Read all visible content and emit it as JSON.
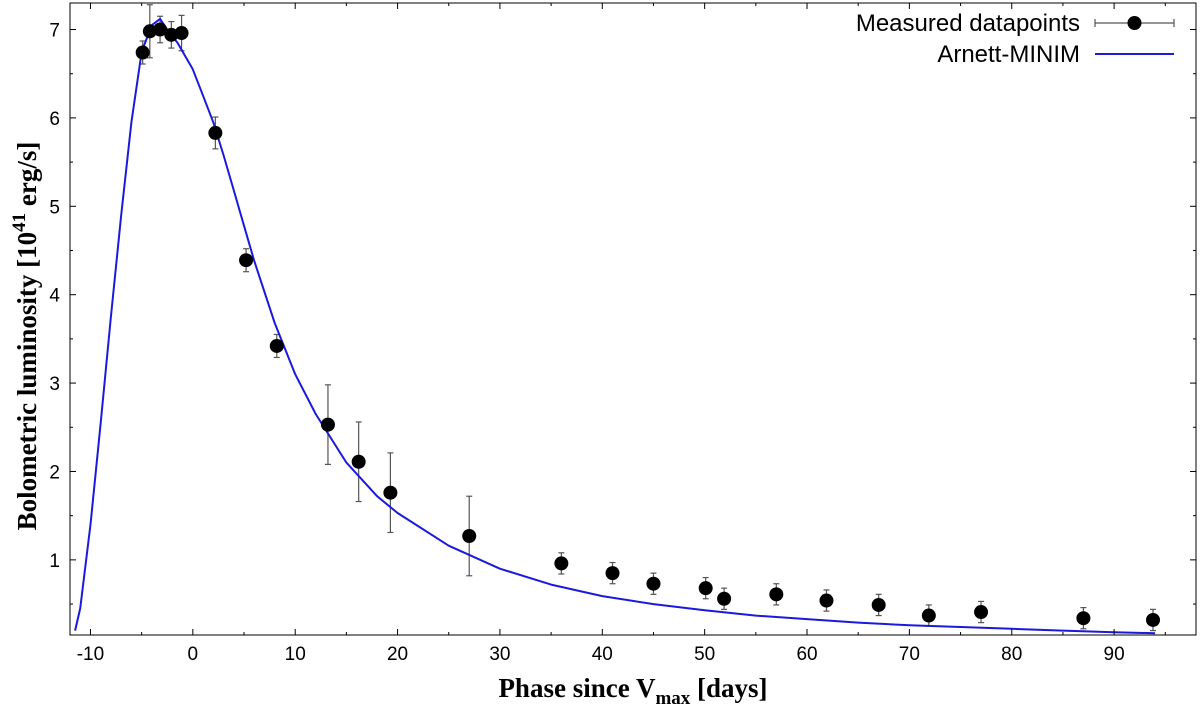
{
  "chart_data": {
    "type": "scatter",
    "title": "",
    "xlabel": {
      "main": "Phase since V",
      "sub": "max",
      "unit": " [days]"
    },
    "ylabel": {
      "main": "Bolometric luminosity [10",
      "sup": "41",
      "unit": " erg/s]"
    },
    "xlim": [
      -12,
      98
    ],
    "ylim": [
      0.15,
      7.3
    ],
    "xticks": [
      -10,
      0,
      10,
      20,
      30,
      40,
      50,
      60,
      70,
      80,
      90
    ],
    "yticks": [
      1,
      2,
      3,
      4,
      5,
      6,
      7
    ],
    "grid": false,
    "legend_position": "top-right",
    "series": [
      {
        "name": "Measured datapoints",
        "kind": "points-with-errorbars",
        "color": "#000000",
        "errorbar_color": "#555555",
        "x": [
          -4.9,
          -4.2,
          -3.2,
          -2.1,
          -1.1,
          2.2,
          5.2,
          8.2,
          13.2,
          16.2,
          19.3,
          27.0,
          36.0,
          41.0,
          45.0,
          50.1,
          51.9,
          57.0,
          61.9,
          67.0,
          71.9,
          77.0,
          87.0,
          93.8
        ],
        "y": [
          6.74,
          6.98,
          7.0,
          6.94,
          6.96,
          5.83,
          4.39,
          3.42,
          2.53,
          2.11,
          1.76,
          1.27,
          0.96,
          0.85,
          0.73,
          0.68,
          0.56,
          0.61,
          0.54,
          0.49,
          0.37,
          0.41,
          0.34,
          0.32
        ],
        "yerr": [
          0.13,
          0.3,
          0.15,
          0.15,
          0.2,
          0.18,
          0.13,
          0.13,
          0.45,
          0.45,
          0.45,
          0.45,
          0.12,
          0.12,
          0.12,
          0.12,
          0.12,
          0.12,
          0.12,
          0.12,
          0.12,
          0.12,
          0.12,
          0.12
        ]
      },
      {
        "name": "Arnett-MINIM",
        "kind": "line",
        "color": "#1a1adf",
        "x": [
          -11.5,
          -11,
          -10,
          -9,
          -8,
          -7,
          -6,
          -5,
          -4,
          -3.2,
          -2.5,
          -1.5,
          0,
          1,
          2,
          3,
          4,
          5,
          6,
          8,
          10,
          12,
          15,
          18,
          20,
          25,
          30,
          35,
          40,
          45,
          50,
          55,
          60,
          65,
          70,
          75,
          80,
          85,
          90,
          94
        ],
        "y": [
          0.2,
          0.45,
          1.4,
          2.55,
          3.75,
          4.9,
          5.95,
          6.75,
          7.05,
          7.12,
          7.0,
          6.85,
          6.55,
          6.25,
          5.95,
          5.58,
          5.18,
          4.78,
          4.38,
          3.68,
          3.1,
          2.65,
          2.1,
          1.72,
          1.53,
          1.16,
          0.9,
          0.72,
          0.59,
          0.5,
          0.43,
          0.37,
          0.33,
          0.29,
          0.26,
          0.24,
          0.22,
          0.2,
          0.18,
          0.17
        ]
      }
    ]
  }
}
